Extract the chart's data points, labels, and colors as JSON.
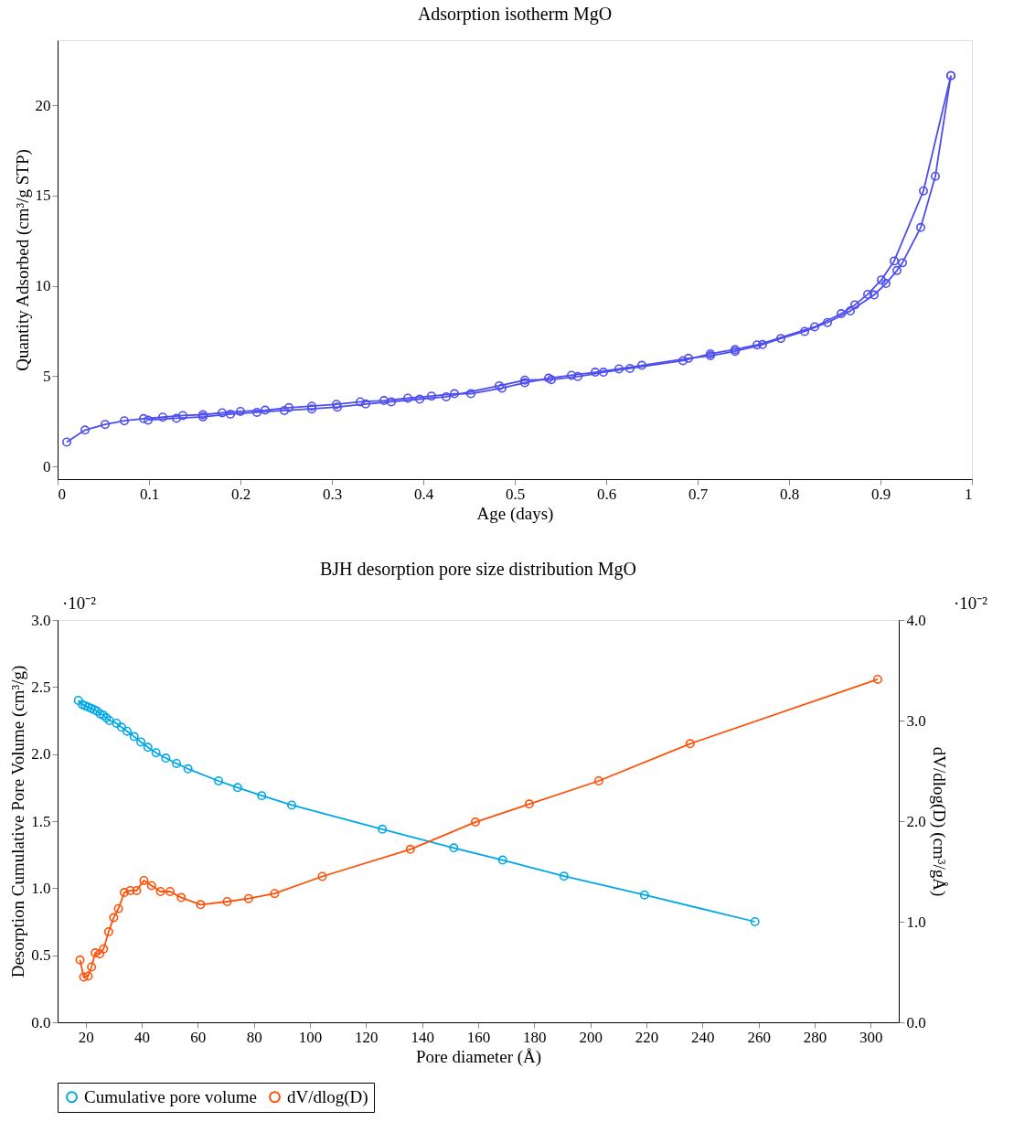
{
  "chart_data": [
    {
      "type": "line",
      "title": "Adsorption isotherm MgO",
      "xlabel": "Age (days)",
      "ylabel": "Quantity Adsorbed (cm³/g STP)",
      "xlim": [
        0,
        1
      ],
      "ylim": [
        -0.7,
        23.6
      ],
      "xticks": [
        0,
        0.1,
        0.2,
        0.3,
        0.4,
        0.5,
        0.6,
        0.7,
        0.8,
        0.9,
        1
      ],
      "yticks": [
        0,
        5,
        10,
        15,
        20
      ],
      "grid": false,
      "legend": false,
      "marker": "circle",
      "line_style": "solid",
      "series": [
        {
          "color": "#4d4df0",
          "x": [
            0.01,
            0.03,
            0.052,
            0.073,
            0.094,
            0.115,
            0.137,
            0.159,
            0.18,
            0.2,
            0.227,
            0.253,
            0.278,
            0.305,
            0.331,
            0.357,
            0.383,
            0.409,
            0.434,
            0.452,
            0.486,
            0.511,
            0.537,
            0.562,
            0.588,
            0.614,
            0.639,
            0.69,
            0.714,
            0.741,
            0.771,
            0.791,
            0.817,
            0.842,
            0.867,
            0.893,
            0.906,
            0.918,
            0.924,
            0.944,
            0.96,
            0.977
          ],
          "values": [
            1.35,
            2.02,
            2.33,
            2.53,
            2.65,
            2.73,
            2.82,
            2.87,
            2.97,
            3.05,
            3.12,
            3.26,
            3.34,
            3.44,
            3.58,
            3.65,
            3.78,
            3.9,
            4.03,
            4.03,
            4.34,
            4.64,
            4.89,
            5.05,
            5.22,
            5.4,
            5.6,
            5.99,
            6.13,
            6.38,
            6.75,
            7.09,
            7.48,
            7.97,
            8.61,
            9.5,
            10.13,
            10.85,
            11.28,
            13.23,
            16.07,
            21.64
          ]
        },
        {
          "color": "#4d4df0",
          "x": [
            0.977,
            0.947,
            0.915,
            0.901,
            0.886,
            0.872,
            0.857,
            0.828,
            0.765,
            0.741,
            0.714,
            0.684,
            0.626,
            0.597,
            0.569,
            0.54,
            0.511,
            0.483,
            0.425,
            0.396,
            0.365,
            0.337,
            0.306,
            0.278,
            0.248,
            0.218,
            0.189,
            0.159,
            0.13,
            0.099
          ],
          "values": [
            21.64,
            15.26,
            11.38,
            10.33,
            9.53,
            8.95,
            8.46,
            7.73,
            6.73,
            6.48,
            6.24,
            5.86,
            5.43,
            5.22,
            4.98,
            4.81,
            4.78,
            4.47,
            3.86,
            3.73,
            3.58,
            3.46,
            3.29,
            3.19,
            3.1,
            3.0,
            2.9,
            2.75,
            2.67,
            2.57
          ]
        }
      ]
    },
    {
      "type": "line",
      "title": "BJH desorption pore size distribution MgO",
      "xlabel": "Pore diameter (Å)",
      "ylabel": "Desorption Cumulative Pore Volume (cm³/g)",
      "y2label": "dV/dlog(D) (cm³/gÅ)",
      "annotations": [
        "·10⁻²",
        "·10⁻²"
      ],
      "xlim": [
        10,
        310
      ],
      "ylim": [
        0,
        3
      ],
      "y2lim": [
        0,
        4
      ],
      "xticks": [
        20,
        40,
        60,
        80,
        100,
        120,
        140,
        160,
        180,
        200,
        220,
        240,
        260,
        280,
        300
      ],
      "yticks": [
        {
          "value": 0,
          "label": "0.0"
        },
        0.5,
        {
          "value": 1,
          "label": "1.0"
        },
        1.5,
        {
          "value": 2,
          "label": "2.0"
        },
        2.5,
        {
          "value": 3,
          "label": "3.0"
        }
      ],
      "y2ticks": [
        {
          "value": 0,
          "label": "0.0"
        },
        {
          "value": 1,
          "label": "1.0"
        },
        {
          "value": 2,
          "label": "2.0"
        },
        {
          "value": 3,
          "label": "3.0"
        },
        {
          "value": 4,
          "label": "4.0"
        }
      ],
      "grid": false,
      "legend": "bottom",
      "marker": "circle",
      "line_style": "solid",
      "series": [
        {
          "name": "Cumulative pore volume",
          "color": "#00a8e8",
          "x": [
            17.4,
            18.8,
            19.8,
            20.9,
            22.0,
            23.1,
            24.1,
            25.2,
            26.3,
            27.4,
            28.5,
            31.0,
            32.8,
            34.8,
            37.3,
            39.7,
            42.2,
            45.1,
            48.6,
            52.4,
            56.5,
            67.4,
            74.2,
            82.8,
            93.5,
            125.8,
            151.3,
            168.7,
            190.6,
            219.3,
            258.7
          ],
          "values": [
            2.4,
            2.37,
            2.36,
            2.35,
            2.34,
            2.33,
            2.32,
            2.3,
            2.29,
            2.27,
            2.25,
            2.23,
            2.2,
            2.17,
            2.13,
            2.09,
            2.05,
            2.01,
            1.97,
            1.93,
            1.89,
            1.8,
            1.75,
            1.69,
            1.62,
            1.44,
            1.3,
            1.21,
            1.09,
            0.95,
            0.75
          ]
        },
        {
          "name": "dV/dlog(D)",
          "color": "#ff5008",
          "axis": "y2",
          "x": [
            18.0,
            19.3,
            20.9,
            22.1,
            23.4,
            25.0,
            26.4,
            28.2,
            30.0,
            31.7,
            33.8,
            35.9,
            38.2,
            40.8,
            43.5,
            46.7,
            50.1,
            54.1,
            61.0,
            70.5,
            78.1,
            87.4,
            104.4,
            135.8,
            159.0,
            178.2,
            203.0,
            235.6,
            302.5
          ],
          "values": [
            0.62,
            0.45,
            0.46,
            0.55,
            0.69,
            0.68,
            0.73,
            0.9,
            1.04,
            1.13,
            1.29,
            1.31,
            1.31,
            1.41,
            1.36,
            1.3,
            1.3,
            1.24,
            1.17,
            1.2,
            1.23,
            1.28,
            1.45,
            1.72,
            1.99,
            2.17,
            2.4,
            2.77,
            3.41
          ]
        }
      ]
    }
  ]
}
